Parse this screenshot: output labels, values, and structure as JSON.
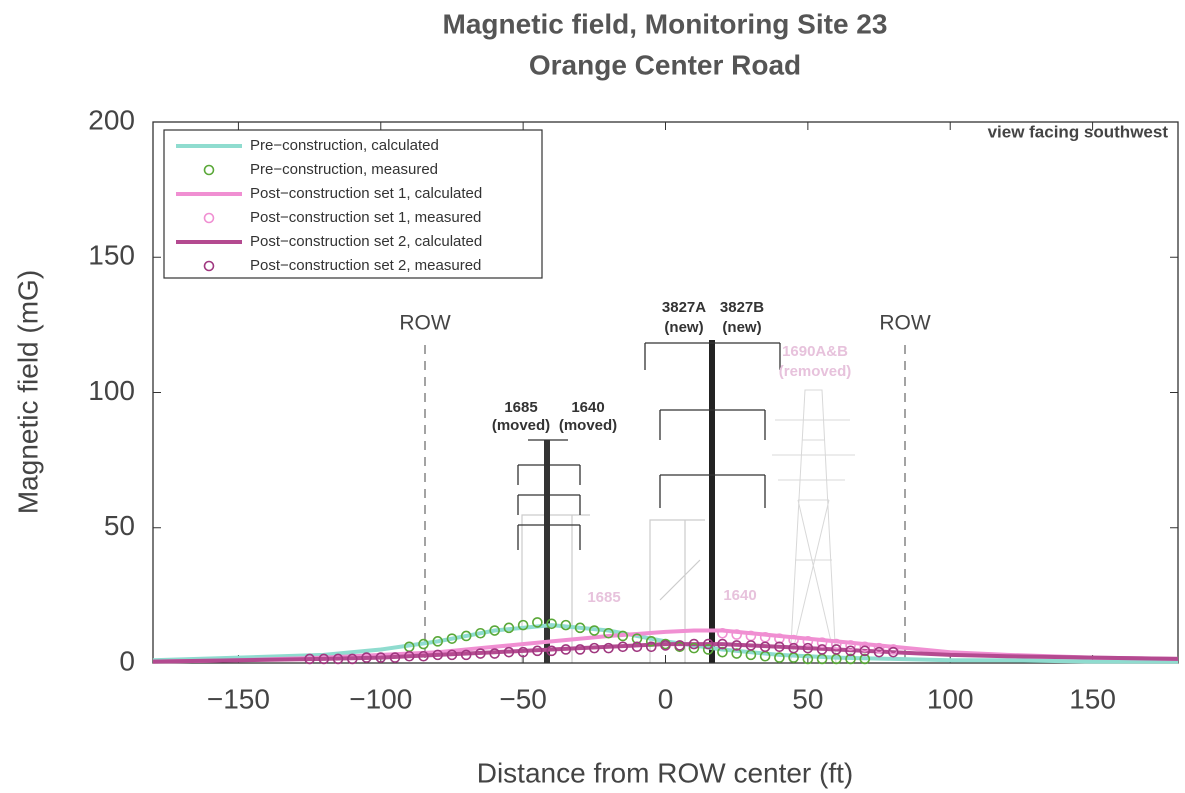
{
  "chart_data": {
    "type": "line",
    "title": "Magnetic field, Monitoring Site 23",
    "subtitle": "Orange Center Road",
    "xlabel": "Distance from ROW center (ft)",
    "ylabel": "Magnetic field (mG)",
    "xlim": [
      -180,
      180
    ],
    "ylim": [
      0,
      200
    ],
    "xticks": [
      {
        "value": -150,
        "label": "−150"
      },
      {
        "value": -100,
        "label": "−100"
      },
      {
        "value": -50,
        "label": "−50"
      },
      0,
      50,
      100,
      150
    ],
    "yticks": [
      0,
      50,
      100,
      150,
      200
    ],
    "legend": "upper left",
    "series": [
      {
        "name": "Pre−construction, calculated",
        "color": "#8fdccf",
        "style": "line",
        "x": [
          -180,
          -150,
          -120,
          -100,
          -80,
          -60,
          -40,
          -20,
          0,
          20,
          40,
          60,
          80,
          100,
          120,
          150,
          180
        ],
        "values": [
          1,
          2,
          3,
          5,
          8,
          12,
          14,
          12,
          8,
          5,
          3,
          2,
          1.5,
          1,
          1,
          0.5,
          0.5
        ]
      },
      {
        "name": "Pre−construction, measured",
        "color": "#5aa838",
        "style": "markers",
        "x": [
          -90,
          -85,
          -80,
          -75,
          -70,
          -65,
          -60,
          -55,
          -50,
          -45,
          -40,
          -35,
          -30,
          -25,
          -20,
          -15,
          -10,
          -5,
          0,
          5,
          10,
          15,
          20,
          25,
          30,
          35,
          40,
          45,
          50,
          55,
          60,
          65,
          70
        ],
        "values": [
          6,
          7,
          8,
          9,
          10,
          11,
          12,
          13,
          14,
          15,
          14.5,
          14,
          13,
          12,
          11,
          10,
          9,
          8,
          7,
          6,
          5.5,
          5,
          4,
          3.5,
          3,
          2.5,
          2,
          2,
          1.5,
          1.5,
          1.5,
          1.5,
          1.5
        ]
      },
      {
        "name": "Post−construction set 1, calculated",
        "color": "#f08fd2",
        "style": "line",
        "x": [
          -180,
          -150,
          -120,
          -100,
          -80,
          -60,
          -40,
          -20,
          0,
          10,
          20,
          40,
          60,
          80,
          100,
          120,
          150,
          180
        ],
        "values": [
          0.5,
          1,
          2,
          3,
          4,
          6,
          8,
          10,
          11.5,
          12,
          12,
          10,
          8,
          6,
          4,
          3,
          2,
          1.5
        ]
      },
      {
        "name": "Post−construction set 1, measured",
        "color": "#f08fd2",
        "style": "markers",
        "x": [
          20,
          25,
          30,
          35,
          40,
          45,
          50,
          55,
          60,
          65,
          70,
          75,
          80
        ],
        "values": [
          11,
          10.5,
          10,
          9.5,
          9,
          8.5,
          8,
          7.5,
          7,
          6.5,
          6,
          5.5,
          5
        ]
      },
      {
        "name": "Post−construction set 2, calculated",
        "color": "#b44a90",
        "style": "line",
        "x": [
          -180,
          -150,
          -120,
          -100,
          -80,
          -60,
          -40,
          -20,
          0,
          20,
          40,
          60,
          80,
          100,
          120,
          150,
          180
        ],
        "values": [
          0.5,
          1,
          1.5,
          2,
          3,
          4,
          5,
          6,
          7,
          7,
          6,
          5,
          4,
          3,
          2.5,
          2,
          1.5
        ]
      },
      {
        "name": "Post−construction set 2, measured",
        "color": "#a03880",
        "style": "markers",
        "x": [
          -125,
          -120,
          -115,
          -110,
          -105,
          -100,
          -95,
          -90,
          -85,
          -80,
          -75,
          -70,
          -65,
          -60,
          -55,
          -50,
          -45,
          -40,
          -35,
          -30,
          -25,
          -20,
          -15,
          -10,
          -5,
          0,
          5,
          10,
          15,
          20,
          25,
          30,
          35,
          40,
          45,
          50,
          55,
          60,
          65,
          70,
          75,
          80
        ],
        "values": [
          1.5,
          1.5,
          1.5,
          1.5,
          2,
          2,
          2,
          2.5,
          2.5,
          3,
          3,
          3,
          3.5,
          3.5,
          4,
          4,
          4.5,
          4.5,
          5,
          5,
          5.5,
          5.5,
          6,
          6,
          6,
          6.5,
          6.5,
          7,
          7,
          7,
          6.5,
          6.5,
          6,
          6,
          5.5,
          5.5,
          5,
          5,
          4.5,
          4.5,
          4,
          4
        ]
      }
    ],
    "annotations": [
      "view facing southwest",
      "ROW",
      "ROW",
      "1685",
      "(moved)",
      "1640",
      "(moved)",
      "3827A",
      "(new)",
      "3827B",
      "(new)",
      "1690A&B",
      "(removed)",
      "1685",
      "1640"
    ]
  }
}
